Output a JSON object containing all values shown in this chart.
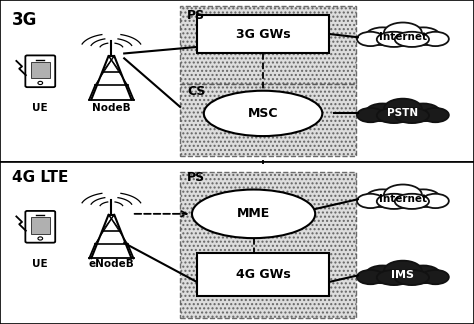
{
  "title_3g": "3G",
  "title_4g": "4G LTE",
  "bg_color": "#ffffff",
  "box_3g_gws": "3G GWs",
  "box_msc": "MSC",
  "box_mme": "MME",
  "box_4g_gws": "4G GWs",
  "label_ue_top": "UE",
  "label_nodeb": "NodeB",
  "label_ue_bot": "UE",
  "label_enodeb": "eNodeB",
  "label_internet_top": "Internet",
  "label_pstn": "PSTN",
  "label_internet_bot": "Internet",
  "label_ims": "IMS",
  "label_ps_top": "PS",
  "label_cs": "CS",
  "label_ps_bot": "PS"
}
